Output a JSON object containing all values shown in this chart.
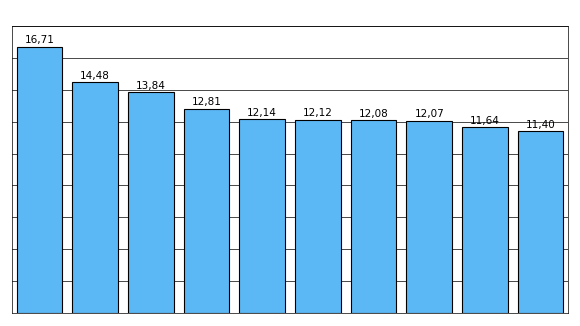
{
  "values": [
    16.71,
    14.48,
    13.84,
    12.81,
    12.14,
    12.12,
    12.08,
    12.07,
    11.64,
    11.4
  ],
  "bar_color": "#5BB8F5",
  "bar_edge_color": "#000000",
  "bar_edge_width": 0.8,
  "background_color": "#ffffff",
  "ylim": [
    0,
    18
  ],
  "ytick_values": [
    0,
    2,
    4,
    6,
    8,
    10,
    12,
    14,
    16,
    18
  ],
  "grid_color": "#000000",
  "grid_linewidth": 0.5,
  "label_fontsize": 7.5,
  "label_color": "#000000",
  "bar_width": 0.82,
  "figsize": [
    5.8,
    3.26
  ],
  "dpi": 100
}
